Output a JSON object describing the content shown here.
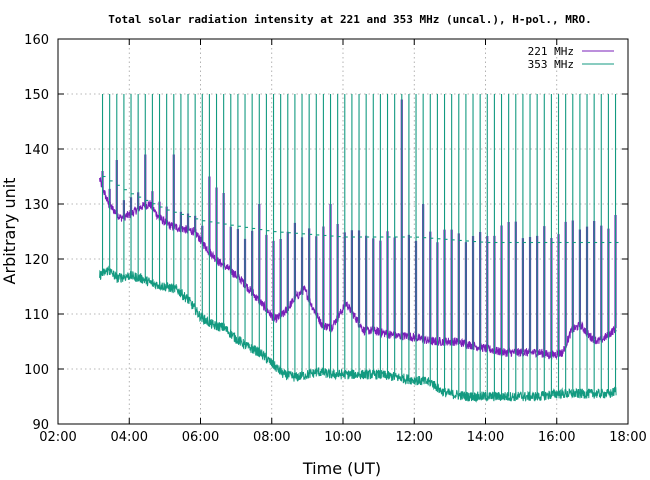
{
  "chart_data": {
    "type": "line",
    "title": "Total solar radiation intensity at 221 and 353 MHz (uncal.), H-pol., MRO.",
    "xlabel": "Time (UT)",
    "ylabel": "Arbitrary unit",
    "xlim": [
      "02:00",
      "18:00"
    ],
    "ylim": [
      90,
      160
    ],
    "x_ticks": [
      "02:00",
      "04:00",
      "06:00",
      "08:00",
      "10:00",
      "12:00",
      "14:00",
      "16:00",
      "18:00"
    ],
    "y_ticks": [
      "90",
      "100",
      "110",
      "120",
      "130",
      "140",
      "150",
      "160"
    ],
    "grid": true,
    "legend_position": "top-right",
    "calibration_spikes": {
      "first": "03:15",
      "interval_minutes": 12,
      "last": "17:39",
      "spike_peak_353": 150
    },
    "series": [
      {
        "name": "221 MHz",
        "color": "#7a1fb8",
        "baseline": [
          [
            "03:10",
            134.5
          ],
          [
            "03:25",
            130
          ],
          [
            "03:45",
            127.5
          ],
          [
            "04:00",
            128
          ],
          [
            "04:20",
            129.5
          ],
          [
            "04:35",
            130
          ],
          [
            "04:50",
            127.5
          ],
          [
            "05:10",
            126
          ],
          [
            "05:30",
            125.5
          ],
          [
            "05:50",
            125
          ],
          [
            "06:10",
            122
          ],
          [
            "06:30",
            119.5
          ],
          [
            "06:50",
            118
          ],
          [
            "07:10",
            116
          ],
          [
            "07:30",
            113.5
          ],
          [
            "07:50",
            111
          ],
          [
            "08:05",
            109
          ],
          [
            "08:20",
            110
          ],
          [
            "08:40",
            113
          ],
          [
            "08:55",
            114.5
          ],
          [
            "09:10",
            111
          ],
          [
            "09:25",
            108
          ],
          [
            "09:40",
            107.5
          ],
          [
            "09:55",
            110
          ],
          [
            "10:05",
            112
          ],
          [
            "10:20",
            109.5
          ],
          [
            "10:35",
            107
          ],
          [
            "10:50",
            107
          ],
          [
            "11:10",
            106.5
          ],
          [
            "11:30",
            106
          ],
          [
            "11:50",
            106
          ],
          [
            "12:10",
            105.5
          ],
          [
            "12:30",
            105
          ],
          [
            "12:50",
            105
          ],
          [
            "13:10",
            105
          ],
          [
            "13:30",
            104.5
          ],
          [
            "13:50",
            104
          ],
          [
            "14:10",
            103.5
          ],
          [
            "14:30",
            103
          ],
          [
            "14:50",
            103
          ],
          [
            "15:10",
            103
          ],
          [
            "15:30",
            103
          ],
          [
            "15:50",
            102.5
          ],
          [
            "16:10",
            103
          ],
          [
            "16:25",
            107
          ],
          [
            "16:40",
            108
          ],
          [
            "16:55",
            106
          ],
          [
            "17:10",
            105
          ],
          [
            "17:25",
            106
          ],
          [
            "17:40",
            107.5
          ]
        ],
        "spike_peaks": [
          [
            "03:39",
            138
          ],
          [
            "04:27",
            139
          ],
          [
            "05:15",
            139
          ],
          [
            "06:15",
            135
          ],
          [
            "06:27",
            133
          ],
          [
            "06:39",
            132
          ],
          [
            "07:39",
            130
          ],
          [
            "09:39",
            130
          ],
          [
            "11:39",
            149
          ],
          [
            "12:15",
            130
          ],
          [
            "15:15",
            124
          ],
          [
            "16:27",
            127
          ],
          [
            "17:39",
            128
          ]
        ]
      },
      {
        "name": "353 MHz",
        "color": "#139a80",
        "baseline": [
          [
            "03:10",
            117
          ],
          [
            "03:25",
            118
          ],
          [
            "03:40",
            116.5
          ],
          [
            "04:00",
            117
          ],
          [
            "04:20",
            116.5
          ],
          [
            "04:40",
            115.5
          ],
          [
            "05:00",
            115
          ],
          [
            "05:20",
            114.5
          ],
          [
            "05:40",
            112.5
          ],
          [
            "06:00",
            109.5
          ],
          [
            "06:20",
            108
          ],
          [
            "06:40",
            107.5
          ],
          [
            "07:00",
            105.5
          ],
          [
            "07:20",
            104
          ],
          [
            "07:40",
            103
          ],
          [
            "08:00",
            101
          ],
          [
            "08:20",
            99
          ],
          [
            "08:40",
            98.5
          ],
          [
            "09:00",
            99
          ],
          [
            "09:20",
            99.5
          ],
          [
            "09:40",
            99
          ],
          [
            "10:00",
            99
          ],
          [
            "10:30",
            99
          ],
          [
            "11:00",
            99
          ],
          [
            "11:30",
            98.5
          ],
          [
            "12:00",
            98
          ],
          [
            "12:30",
            97.5
          ],
          [
            "12:45",
            96
          ],
          [
            "13:00",
            95.5
          ],
          [
            "13:30",
            95
          ],
          [
            "14:00",
            95
          ],
          [
            "14:30",
            95
          ],
          [
            "15:00",
            95
          ],
          [
            "15:30",
            95
          ],
          [
            "16:00",
            95.5
          ],
          [
            "16:30",
            95.5
          ],
          [
            "17:00",
            95.5
          ],
          [
            "17:30",
            95.5
          ],
          [
            "17:40",
            96
          ]
        ],
        "plateau_during_spikes": [
          [
            "03:15",
            135
          ],
          [
            "04:00",
            132
          ],
          [
            "05:00",
            129
          ],
          [
            "06:00",
            127
          ],
          [
            "07:00",
            126
          ],
          [
            "08:00",
            125
          ],
          [
            "10:00",
            124
          ],
          [
            "12:00",
            124
          ],
          [
            "14:00",
            123
          ],
          [
            "16:00",
            123
          ],
          [
            "17:40",
            123
          ]
        ]
      }
    ]
  }
}
